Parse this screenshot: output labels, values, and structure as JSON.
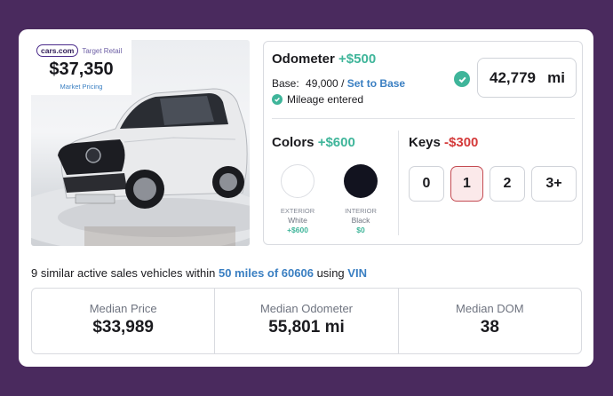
{
  "pricing": {
    "logo": "cars.com",
    "label": "Target Retail",
    "price": "$37,350",
    "caption": "Market Pricing"
  },
  "odometer": {
    "title": "Odometer",
    "adjustment": "+$500",
    "base_label": "Base:",
    "base_value": "49,000 /",
    "set_to_base": "Set to Base",
    "status": "Mileage entered",
    "miles_value": "42,779",
    "miles_unit": "mi"
  },
  "colors": {
    "title": "Colors",
    "adjustment": "+$600",
    "exterior": {
      "caption": "EXTERIOR",
      "name": "White",
      "adjustment": "+$600",
      "swatch": "#ffffff"
    },
    "interior": {
      "caption": "INTERIOR",
      "name": "Black",
      "adjustment": "$0",
      "swatch": "#12131f"
    }
  },
  "keys": {
    "title": "Keys",
    "adjustment": "-$300",
    "options": [
      "0",
      "1",
      "2",
      "3+"
    ],
    "selected": "1"
  },
  "similar": {
    "prefix": "9 similar active sales vehicles within",
    "radius_link": "50 miles of 60606",
    "using": "using",
    "vin_link": "VIN"
  },
  "stats": [
    {
      "label": "Median Price",
      "value": "$33,989"
    },
    {
      "label": "Median Odometer",
      "value": "55,801 mi"
    },
    {
      "label": "Median DOM",
      "value": "38"
    }
  ],
  "colors_theme": {
    "background": "#4a2a5e",
    "positive": "#3fb59a",
    "negative": "#d43a3a",
    "link": "#3a7fc2",
    "selected_fill": "#fbe9ea"
  }
}
